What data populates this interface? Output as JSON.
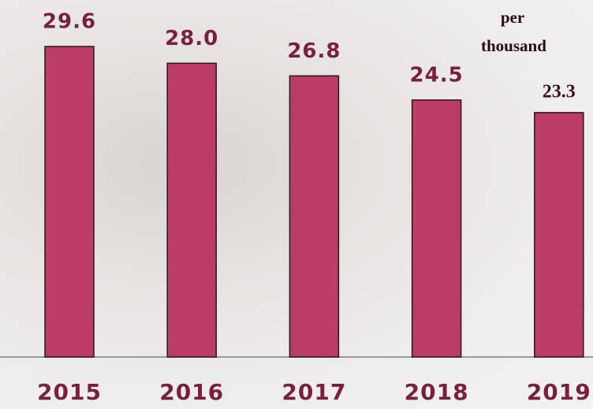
{
  "chart_data": {
    "type": "bar",
    "annotation": "per thousand",
    "categories": [
      "2015",
      "2016",
      "2017",
      "2018",
      "2019"
    ],
    "values": [
      29.6,
      28.0,
      26.8,
      24.5,
      23.3
    ],
    "value_labels": [
      "29.6",
      "28.0",
      "26.8",
      "24.5",
      "23.3"
    ],
    "color": "#bb3c67"
  }
}
